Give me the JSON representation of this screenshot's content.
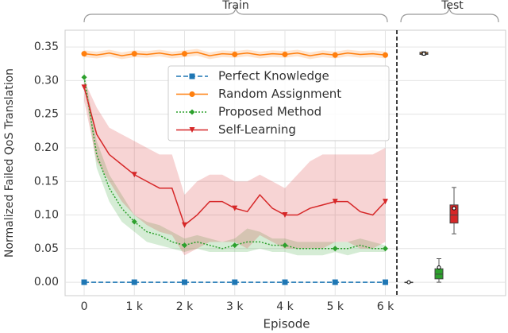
{
  "chart_data": {
    "type": "line",
    "xlabel": "Episode",
    "ylabel": "Normalized Failed QoS Translation",
    "annotations": [
      "Train",
      "Test"
    ],
    "xlim": [
      -380,
      6230
    ],
    "ylim": [
      -0.02,
      0.375
    ],
    "xticks": [
      0,
      {
        "value": 1000,
        "label": "1 k"
      },
      {
        "value": 2000,
        "label": "2 k"
      },
      {
        "value": 3000,
        "label": "3 k"
      },
      {
        "value": 4000,
        "label": "4 k"
      },
      {
        "value": 5000,
        "label": "5 k"
      },
      {
        "value": 6000,
        "label": "6 k"
      }
    ],
    "yticks": [
      {
        "value": 0,
        "label": "0.00"
      },
      0.05,
      {
        "value": 0.1,
        "label": "0.10"
      },
      0.15,
      {
        "value": 0.2,
        "label": "0.20"
      },
      0.25,
      {
        "value": 0.3,
        "label": "0.30"
      },
      0.35
    ],
    "grid": true,
    "legend": "upper center",
    "x": [
      0,
      250,
      500,
      750,
      1000,
      1250,
      1500,
      1750,
      2000,
      2250,
      2500,
      2750,
      3000,
      3250,
      3500,
      3750,
      4000,
      4250,
      4500,
      4750,
      5000,
      5250,
      5500,
      5750,
      6000
    ],
    "series": [
      {
        "name": "Perfect Knowledge",
        "color": "#1f77b4",
        "linestyle": "dashed",
        "marker": "square",
        "values": [
          0,
          0,
          0,
          0,
          0,
          0,
          0,
          0,
          0,
          0,
          0,
          0,
          0,
          0,
          0,
          0,
          0,
          0,
          0,
          0,
          0,
          0,
          0,
          0,
          0
        ],
        "test": {
          "min": 0,
          "q1": 0,
          "median": 0,
          "q3": 0,
          "max": 0,
          "mean": 0
        }
      },
      {
        "name": "Random Assignment",
        "color": "#ff7f0e",
        "linestyle": "solid",
        "marker": "circle",
        "values": [
          0.34,
          0.338,
          0.341,
          0.337,
          0.34,
          0.339,
          0.341,
          0.338,
          0.34,
          0.342,
          0.337,
          0.34,
          0.339,
          0.341,
          0.338,
          0.34,
          0.339,
          0.341,
          0.337,
          0.34,
          0.338,
          0.341,
          0.339,
          0.34,
          0.338
        ],
        "lower": [
          0.335,
          0.333,
          0.336,
          0.332,
          0.335,
          0.334,
          0.336,
          0.333,
          0.335,
          0.337,
          0.332,
          0.335,
          0.334,
          0.336,
          0.333,
          0.335,
          0.334,
          0.336,
          0.332,
          0.335,
          0.333,
          0.336,
          0.334,
          0.335,
          0.333
        ],
        "upper": [
          0.345,
          0.343,
          0.346,
          0.342,
          0.345,
          0.344,
          0.346,
          0.343,
          0.345,
          0.347,
          0.342,
          0.345,
          0.344,
          0.346,
          0.343,
          0.345,
          0.344,
          0.346,
          0.342,
          0.345,
          0.343,
          0.346,
          0.344,
          0.345,
          0.343
        ],
        "test": {
          "min": 0.338,
          "q1": 0.339,
          "median": 0.34,
          "q3": 0.342,
          "max": 0.343,
          "mean": 0.34
        }
      },
      {
        "name": "Proposed Method",
        "color": "#2ca02c",
        "linestyle": "dotted",
        "marker": "diamond",
        "values": [
          0.305,
          0.19,
          0.14,
          0.11,
          0.09,
          0.075,
          0.07,
          0.06,
          0.055,
          0.06,
          0.055,
          0.05,
          0.055,
          0.06,
          0.06,
          0.055,
          0.055,
          0.05,
          0.05,
          0.05,
          0.05,
          0.05,
          0.055,
          0.05,
          0.05
        ],
        "lower": [
          0.295,
          0.17,
          0.12,
          0.09,
          0.075,
          0.06,
          0.055,
          0.05,
          0.045,
          0.05,
          0.045,
          0.045,
          0.045,
          0.045,
          0.05,
          0.045,
          0.045,
          0.04,
          0.04,
          0.04,
          0.045,
          0.04,
          0.045,
          0.045,
          0.045
        ],
        "upper": [
          0.315,
          0.21,
          0.16,
          0.13,
          0.1,
          0.09,
          0.085,
          0.075,
          0.065,
          0.07,
          0.065,
          0.06,
          0.065,
          0.08,
          0.075,
          0.065,
          0.065,
          0.06,
          0.06,
          0.06,
          0.06,
          0.06,
          0.065,
          0.06,
          0.055
        ],
        "test": {
          "min": 0,
          "q1": 0.005,
          "median": 0.012,
          "q3": 0.02,
          "max": 0.035,
          "mean": 0.022
        }
      },
      {
        "name": "Self-Learning",
        "color": "#d62728",
        "linestyle": "solid",
        "marker": "triangle",
        "values": [
          0.29,
          0.22,
          0.19,
          0.175,
          0.16,
          0.15,
          0.14,
          0.14,
          0.085,
          0.1,
          0.12,
          0.12,
          0.11,
          0.105,
          0.13,
          0.11,
          0.1,
          0.1,
          0.11,
          0.115,
          0.12,
          0.12,
          0.105,
          0.1,
          0.12
        ],
        "lower": [
          0.27,
          0.18,
          0.15,
          0.12,
          0.1,
          0.085,
          0.075,
          0.07,
          0.04,
          0.05,
          0.06,
          0.06,
          0.06,
          0.05,
          0.07,
          0.06,
          0.05,
          0.05,
          0.05,
          0.05,
          0.06,
          0.06,
          0.05,
          0.05,
          0.06
        ],
        "upper": [
          0.3,
          0.26,
          0.23,
          0.22,
          0.21,
          0.2,
          0.19,
          0.19,
          0.13,
          0.15,
          0.16,
          0.16,
          0.15,
          0.15,
          0.16,
          0.15,
          0.14,
          0.16,
          0.18,
          0.19,
          0.19,
          0.19,
          0.19,
          0.19,
          0.2
        ],
        "test": {
          "min": 0.072,
          "q1": 0.088,
          "median": 0.1,
          "q3": 0.115,
          "max": 0.141,
          "mean": 0.11
        }
      }
    ]
  }
}
